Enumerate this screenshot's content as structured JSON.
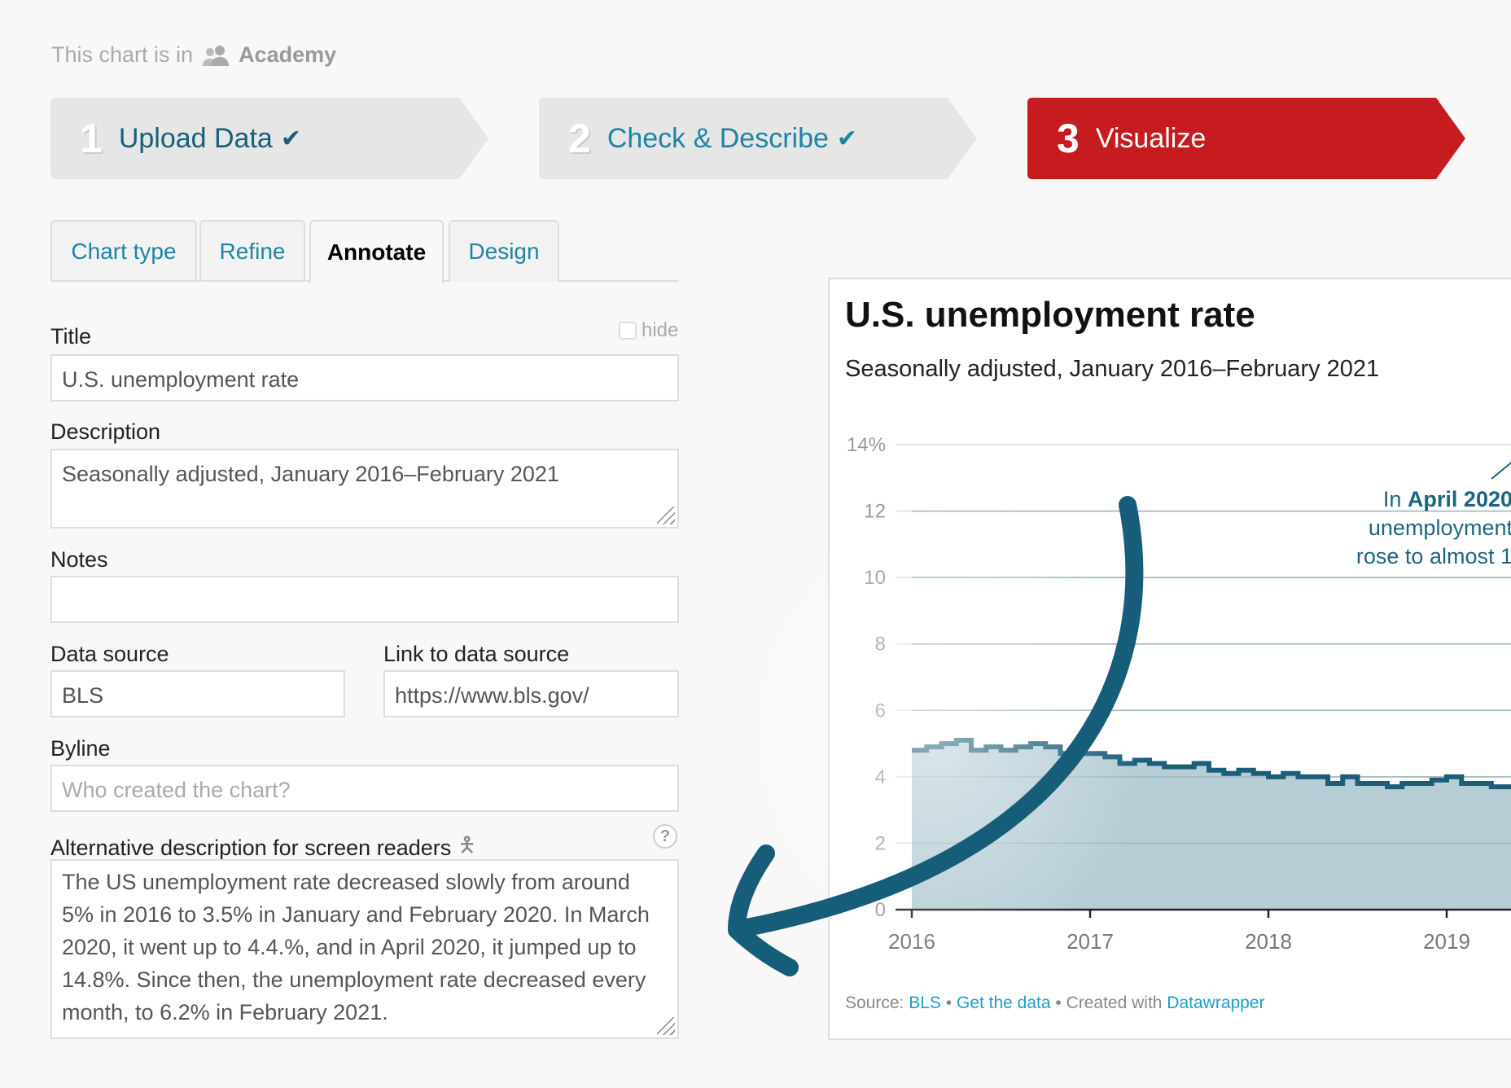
{
  "context": {
    "prefix": "This chart is in",
    "team_icon": "users-icon",
    "team": "Academy"
  },
  "steps": [
    {
      "num": "1",
      "label": "Upload Data",
      "done": true
    },
    {
      "num": "2",
      "label": "Check & Describe",
      "done": true
    },
    {
      "num": "3",
      "label": "Visualize",
      "active": true
    }
  ],
  "tabs": [
    {
      "label": "Chart type"
    },
    {
      "label": "Refine"
    },
    {
      "label": "Annotate",
      "active": true
    },
    {
      "label": "Design"
    }
  ],
  "form": {
    "title_label": "Title",
    "hide_label": "hide",
    "title_value": "U.S. unemployment rate",
    "description_label": "Description",
    "description_value": "Seasonally adjusted, January 2016–February 2021",
    "notes_label": "Notes",
    "notes_value": "",
    "source_label": "Data source",
    "source_value": "BLS",
    "link_label": "Link to data source",
    "link_value": "https://www.bls.gov/",
    "byline_label": "Byline",
    "byline_placeholder": "Who created the chart?",
    "alt_label": "Alternative description for screen readers",
    "alt_help": "?",
    "alt_value": "The US unemployment rate decreased slowly from around 5% in 2016 to 3.5% in January and February 2020. In March 2020, it went up to 4.4.%, and in April 2020, it jumped up to 14.8%. Since then, the unemployment rate decreased every month, to 6.2% in February 2021."
  },
  "colors": {
    "accent_red": "#c71c1f",
    "teal": "#1a5e78",
    "link": "#1d85a3",
    "area": "#b6cdd6"
  },
  "chart_data": {
    "type": "area",
    "title": "U.S. unemployment rate",
    "subtitle": "Seasonally adjusted, January 2016–February 2021",
    "interpolation": "step-after",
    "y_ticks": [
      "0",
      "2",
      "4",
      "6",
      "8",
      "10",
      "12",
      "14%"
    ],
    "ylim": [
      0,
      14
    ],
    "x_ticks": [
      "2016",
      "2017",
      "2018",
      "2019"
    ],
    "grid": true,
    "x_start": "2016-01",
    "values": [
      4.8,
      4.9,
      5.0,
      5.1,
      4.8,
      4.9,
      4.8,
      4.9,
      5.0,
      4.9,
      4.7,
      4.7,
      4.7,
      4.6,
      4.4,
      4.5,
      4.4,
      4.3,
      4.3,
      4.4,
      4.2,
      4.1,
      4.2,
      4.1,
      4.0,
      4.1,
      4.0,
      4.0,
      3.8,
      4.0,
      3.8,
      3.8,
      3.7,
      3.8,
      3.8,
      3.9,
      4.0,
      3.8,
      3.8,
      3.7,
      3.7
    ],
    "annotation": {
      "prefix": "In ",
      "bold": "April 2020",
      "line2": "unemployment",
      "line3": "rose to almost 1"
    },
    "footer": {
      "source_prefix": "Source: ",
      "source": "BLS",
      "sep": " • ",
      "get_data": "Get the data",
      "created": " • Created with ",
      "tool": "Datawrapper"
    }
  }
}
